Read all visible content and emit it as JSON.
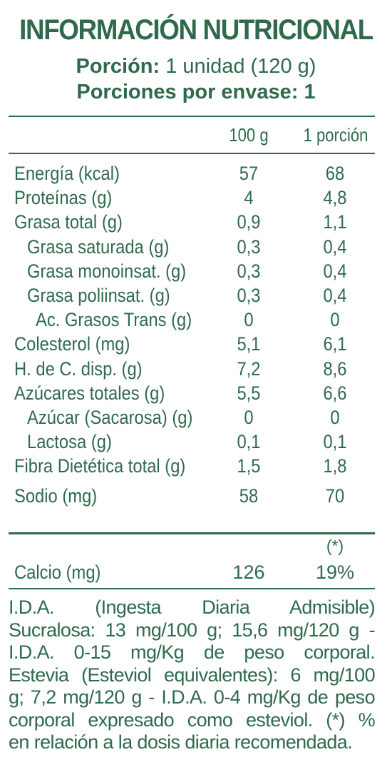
{
  "header": {
    "title": "INFORMACIÓN NUTRICIONAL",
    "portion_label": "Porción:",
    "portion_value": " 1 unidad (120 g)",
    "servings_line": "Porciones por envase: 1"
  },
  "columns": {
    "col1": "100 g",
    "col2": "1 porción"
  },
  "rows": [
    {
      "label": "Energía (kcal)",
      "v1": "57",
      "v2": "68"
    },
    {
      "label": "Proteínas (g)",
      "v1": "4",
      "v2": "4,8"
    },
    {
      "label": "Grasa total (g)",
      "v1": "0,9",
      "v2": "1,1"
    },
    {
      "label": "Grasa saturada (g)",
      "v1": "0,3",
      "v2": "0,4"
    },
    {
      "label": "Grasa monoinsat. (g)",
      "v1": "0,3",
      "v2": "0,4"
    },
    {
      "label": "Grasa poliinsat. (g)",
      "v1": "0,3",
      "v2": "0,4"
    },
    {
      "label": "Ac. Grasos Trans (g)",
      "v1": "0",
      "v2": "0"
    },
    {
      "label": "Colesterol (mg)",
      "v1": "5,1",
      "v2": "6,1"
    },
    {
      "label": "H. de C. disp. (g)",
      "v1": "7,2",
      "v2": "8,6"
    },
    {
      "label": "Azúcares totales (g)",
      "v1": "5,5",
      "v2": "6,6"
    },
    {
      "label": "Azúcar (Sacarosa) (g)",
      "v1": "0",
      "v2": "0"
    },
    {
      "label": "Lactosa (g)",
      "v1": "0,1",
      "v2": "0,1"
    },
    {
      "label": "Fibra Dietética total (g)",
      "v1": "1,5",
      "v2": "1,8"
    },
    {
      "label": "Sodio (mg)",
      "v1": "58",
      "v2": "70"
    }
  ],
  "asterisk": "(*)",
  "calcio": {
    "label": "Calcio (mg)",
    "v1": "126",
    "v2": "19%"
  },
  "footnote": [
    "I.D.A. (Ingesta Diaria Admisible)",
    "Sucralosa: 13 mg/100 g; 15,6 mg/120 g -",
    "I.D.A. 0-15 mg/Kg de peso corporal.",
    "Estevia (Esteviol equivalentes): 6 mg/100",
    "g; 7,2 mg/120 g - I.D.A. 0-4 mg/Kg de peso",
    "corporal expresado como esteviol. (*) %",
    "en relación a la dosis diaria recomendada."
  ],
  "colors": {
    "text": "#2f6a4c",
    "background": "#ffffff"
  }
}
